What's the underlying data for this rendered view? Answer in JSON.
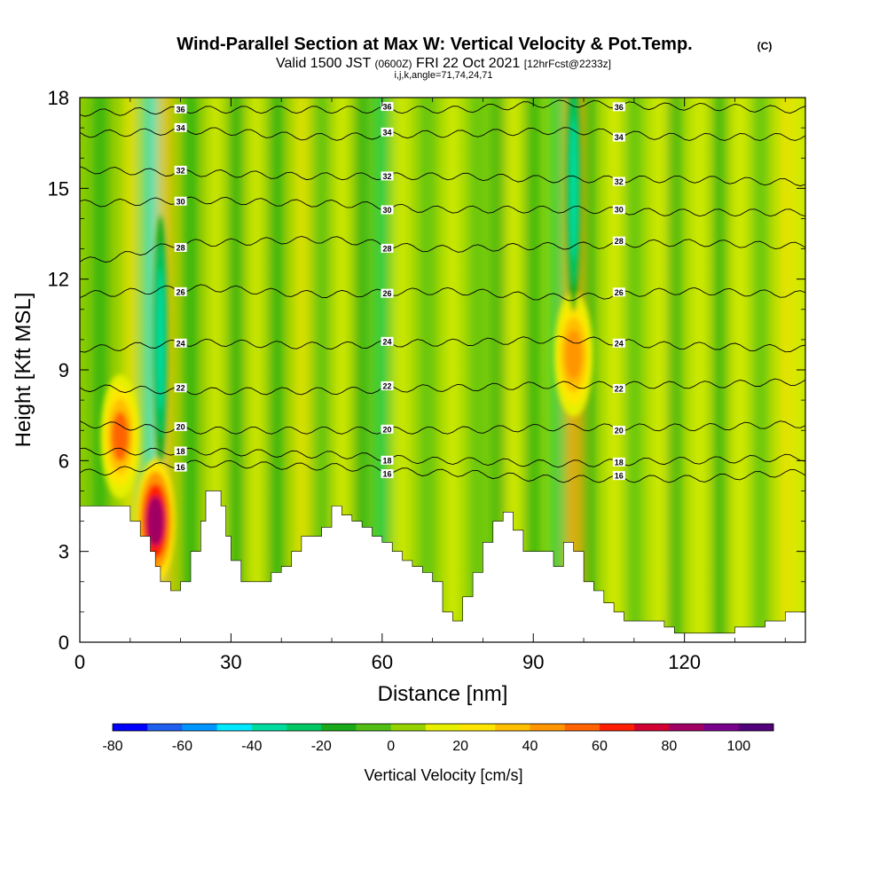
{
  "chart_data": {
    "type": "heatmap",
    "title": "Wind-Parallel Section at Max W: Vertical Velocity & Pot.Temp.",
    "title_mark": "(C)",
    "subtitle_main_a": "Valid 1500 JST",
    "subtitle_small_a": "(0600Z)",
    "subtitle_main_b": "FRI 22 Oct 2021",
    "subtitle_small_b": "[12hrFcst@2233z]",
    "subtitle2": "i,j,k,angle=71,74,24,71",
    "xlabel": "Distance [nm]",
    "ylabel": "Height [Kft MSL]",
    "xlim": [
      0,
      144
    ],
    "ylim": [
      0,
      18
    ],
    "x_ticks": [
      0,
      30,
      60,
      90,
      120
    ],
    "y_ticks": [
      0,
      3,
      6,
      9,
      12,
      15,
      18
    ],
    "colorbar": {
      "label": "Vertical Velocity [cm/s]",
      "levels": [
        -80,
        -70,
        -60,
        -50,
        -40,
        -30,
        -20,
        -10,
        0,
        10,
        20,
        30,
        40,
        50,
        60,
        70,
        80,
        90,
        100,
        110
      ],
      "tick_values": [
        -80,
        -60,
        -40,
        -20,
        0,
        20,
        40,
        60,
        80,
        100
      ],
      "colors": [
        "#0000ff",
        "#1e5ff0",
        "#0096ff",
        "#00e8ff",
        "#00dca0",
        "#00c864",
        "#18aa18",
        "#50be14",
        "#96d200",
        "#e6f000",
        "#ffe600",
        "#ffbe00",
        "#ff9600",
        "#ff6400",
        "#ff1e00",
        "#d20032",
        "#a00064",
        "#78008c",
        "#500078"
      ]
    },
    "theta_contours": [
      {
        "level": 16,
        "heights": [
          5.6,
          5.9,
          5.8,
          5.6,
          5.4,
          5.4,
          5.6
        ]
      },
      {
        "level": 18,
        "heights": [
          6.3,
          6.3,
          6.2,
          6.0,
          5.9,
          6.0,
          6.1
        ]
      },
      {
        "level": 20,
        "heights": [
          7.2,
          7.0,
          7.0,
          7.0,
          7.1,
          7.1,
          7.2
        ]
      },
      {
        "level": 22,
        "heights": [
          8.4,
          8.3,
          8.3,
          8.4,
          8.5,
          8.5,
          8.6
        ]
      },
      {
        "level": 24,
        "heights": [
          9.7,
          9.9,
          9.8,
          9.9,
          10.0,
          9.8,
          9.7
        ]
      },
      {
        "level": 26,
        "heights": [
          11.5,
          11.7,
          11.5,
          11.6,
          11.4,
          11.6,
          11.5
        ]
      },
      {
        "level": 28,
        "heights": [
          12.6,
          13.2,
          13.3,
          13.0,
          13.1,
          13.2,
          13.1
        ]
      },
      {
        "level": 30,
        "heights": [
          14.5,
          14.6,
          14.5,
          14.3,
          14.3,
          14.2,
          14.2
        ]
      },
      {
        "level": 32,
        "heights": [
          15.6,
          15.5,
          15.4,
          15.4,
          15.3,
          15.3,
          15.2
        ]
      },
      {
        "level": 34,
        "heights": [
          16.8,
          16.9,
          16.7,
          16.8,
          16.9,
          16.7,
          16.7
        ]
      },
      {
        "level": 36,
        "heights": [
          17.5,
          17.6,
          17.6,
          17.6,
          17.8,
          17.7,
          17.6
        ]
      }
    ],
    "theta_contour_x": [
      0,
      24,
      48,
      72,
      96,
      120,
      144
    ],
    "terrain": {
      "x": [
        0,
        8,
        10,
        12,
        14,
        15,
        16,
        17,
        18,
        19,
        20,
        22,
        24,
        25,
        26,
        28,
        29,
        30,
        32,
        34,
        36,
        38,
        40,
        42,
        44,
        46,
        48,
        50,
        52,
        54,
        56,
        58,
        60,
        62,
        64,
        66,
        68,
        70,
        72,
        74,
        76,
        78,
        80,
        82,
        84,
        86,
        88,
        90,
        92,
        94,
        96,
        98,
        100,
        102,
        104,
        106,
        108,
        110,
        112,
        114,
        116,
        118,
        120,
        122,
        124,
        126,
        128,
        130,
        132,
        134,
        136,
        138,
        140,
        142,
        144
      ],
      "height_kft": [
        4.5,
        4.5,
        4.0,
        3.5,
        3.0,
        2.5,
        2.0,
        2.0,
        1.7,
        1.7,
        2.0,
        3.0,
        4.0,
        5.0,
        5.0,
        4.5,
        3.5,
        2.7,
        2.0,
        2.0,
        2.0,
        2.3,
        2.5,
        3.0,
        3.5,
        3.5,
        3.8,
        4.5,
        4.2,
        4.0,
        3.8,
        3.5,
        3.3,
        3.0,
        2.7,
        2.5,
        2.3,
        2.0,
        1.0,
        0.7,
        1.5,
        2.3,
        3.3,
        4.0,
        4.3,
        3.7,
        3.0,
        3.0,
        3.0,
        2.5,
        3.3,
        3.0,
        2.0,
        1.7,
        1.3,
        1.0,
        0.7,
        0.7,
        0.7,
        0.7,
        0.5,
        0.3,
        0.3,
        0.3,
        0.3,
        0.3,
        0.3,
        0.5,
        0.5,
        0.5,
        0.7,
        0.7,
        1.0,
        1.0,
        1.0
      ]
    },
    "updraft_cores": [
      {
        "x": 15,
        "y": 4.0,
        "w_max": 80
      },
      {
        "x": 8,
        "y": 6.8,
        "w_max": 50
      },
      {
        "x": 98,
        "y": 9.5,
        "w_max": 40
      }
    ],
    "downdraft_cores": [
      {
        "x": 16,
        "y": 10.0,
        "w_min": -40
      },
      {
        "x": 98,
        "y": 15.0,
        "w_min": -40
      }
    ]
  }
}
